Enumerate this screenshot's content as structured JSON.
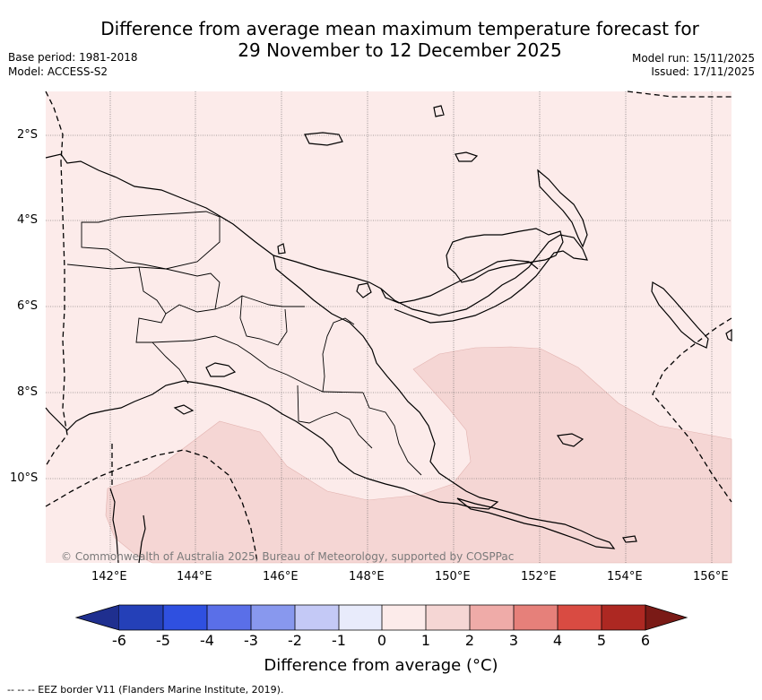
{
  "header": {
    "title_line1": "Difference from average mean maximum temperature forecast for",
    "title_line2": "29 November to 12 December 2025",
    "base_period": "Base period: 1981-2018",
    "model": "Model: ACCESS-S2",
    "model_run": "Model run: 15/11/2025",
    "issued": "Issued: 17/11/2025"
  },
  "map": {
    "lat_labels": [
      "2°S",
      "4°S",
      "6°S",
      "8°S",
      "10°S"
    ],
    "lon_labels": [
      "142°E",
      "144°E",
      "146°E",
      "148°E",
      "150°E",
      "152°E",
      "154°E",
      "156°E"
    ],
    "credit": "© Commonwealth of Australia 2025, Bureau of Meteorology, supported by COSPPac",
    "colors": {
      "background": "#fcebea",
      "anomaly_1_2": "#f5d6d4",
      "coast": "#000000"
    }
  },
  "colorbar": {
    "labels": [
      "-6",
      "-5",
      "-4",
      "-3",
      "-2",
      "-1",
      "0",
      "1",
      "2",
      "3",
      "4",
      "5",
      "6"
    ],
    "colors": [
      "#1f2f8f",
      "#2440b8",
      "#2f50e0",
      "#5a6fe8",
      "#8898ee",
      "#c4c9f6",
      "#e8ebfb",
      "#fcebea",
      "#f5d6d4",
      "#efaba8",
      "#e6807a",
      "#d94b42",
      "#ad2822",
      "#7a1a16"
    ],
    "title": "Difference from average (°C)"
  },
  "footnote": "--  --  -- EEZ border V11 (Flanders Marine Institute, 2019)."
}
